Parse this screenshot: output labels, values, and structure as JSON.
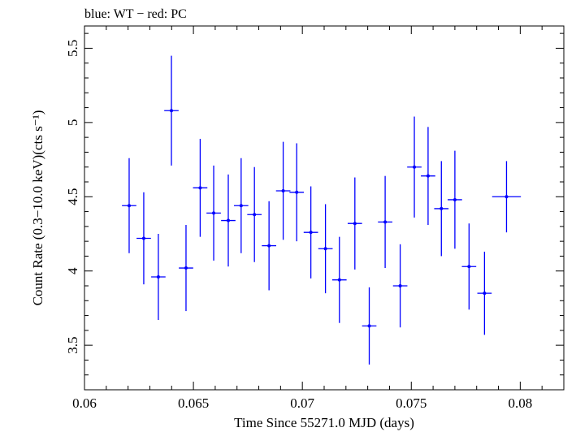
{
  "chart_data": {
    "type": "scatter",
    "title": "blue: WT − red: PC",
    "xlabel": "Time Since 55271.0 MJD (days)",
    "ylabel": "Count Rate (0.3−10.0 keV)(cts s⁻¹)",
    "xlim": [
      0.06,
      0.082
    ],
    "ylim": [
      3.2,
      5.65
    ],
    "x_ticks": [
      0.06,
      0.065,
      0.07,
      0.075,
      0.08
    ],
    "x_tick_labels": [
      "0.06",
      "0.065",
      "0.07",
      "0.075",
      "0.08"
    ],
    "y_ticks": [
      3.5,
      4,
      4.5,
      5,
      5.5
    ],
    "y_tick_labels": [
      "3.5",
      "4",
      "4.5",
      "5",
      "5.5"
    ],
    "series": [
      {
        "color": "#0000ff",
        "points": [
          {
            "x": 0.06205,
            "xerr": 0.00033,
            "y": 4.44,
            "yerr": 0.32
          },
          {
            "x": 0.06272,
            "xerr": 0.00033,
            "y": 4.22,
            "yerr": 0.31
          },
          {
            "x": 0.06339,
            "xerr": 0.00033,
            "y": 3.96,
            "yerr": 0.29
          },
          {
            "x": 0.06466,
            "xerr": 0.00033,
            "y": 4.02,
            "yerr": 0.29
          },
          {
            "x": 0.06399,
            "xerr": 0.00033,
            "y": 5.08,
            "yerr": 0.37
          },
          {
            "x": 0.06531,
            "xerr": 0.00033,
            "y": 4.56,
            "yerr": 0.33
          },
          {
            "x": 0.06593,
            "xerr": 0.00033,
            "y": 4.39,
            "yerr": 0.32
          },
          {
            "x": 0.0666,
            "xerr": 0.00033,
            "y": 4.34,
            "yerr": 0.31
          },
          {
            "x": 0.06719,
            "xerr": 0.00033,
            "y": 4.44,
            "yerr": 0.32
          },
          {
            "x": 0.0678,
            "xerr": 0.00033,
            "y": 4.38,
            "yerr": 0.32
          },
          {
            "x": 0.06847,
            "xerr": 0.00033,
            "y": 4.17,
            "yerr": 0.3
          },
          {
            "x": 0.06912,
            "xerr": 0.00033,
            "y": 4.54,
            "yerr": 0.33
          },
          {
            "x": 0.06974,
            "xerr": 0.00033,
            "y": 4.53,
            "yerr": 0.33
          },
          {
            "x": 0.07039,
            "xerr": 0.00033,
            "y": 4.26,
            "yerr": 0.31
          },
          {
            "x": 0.07106,
            "xerr": 0.00033,
            "y": 4.15,
            "yerr": 0.3
          },
          {
            "x": 0.0717,
            "xerr": 0.00033,
            "y": 3.94,
            "yerr": 0.29
          },
          {
            "x": 0.07241,
            "xerr": 0.00033,
            "y": 4.32,
            "yerr": 0.31
          },
          {
            "x": 0.07307,
            "xerr": 0.00033,
            "y": 3.63,
            "yerr": 0.26
          },
          {
            "x": 0.0738,
            "xerr": 0.00033,
            "y": 4.33,
            "yerr": 0.31
          },
          {
            "x": 0.07449,
            "xerr": 0.00033,
            "y": 3.9,
            "yerr": 0.28
          },
          {
            "x": 0.07514,
            "xerr": 0.00033,
            "y": 4.7,
            "yerr": 0.34
          },
          {
            "x": 0.07577,
            "xerr": 0.00033,
            "y": 4.64,
            "yerr": 0.33
          },
          {
            "x": 0.07638,
            "xerr": 0.00033,
            "y": 4.42,
            "yerr": 0.32
          },
          {
            "x": 0.077,
            "xerr": 0.00033,
            "y": 4.48,
            "yerr": 0.33
          },
          {
            "x": 0.07765,
            "xerr": 0.00033,
            "y": 4.03,
            "yerr": 0.29
          },
          {
            "x": 0.07836,
            "xerr": 0.00033,
            "y": 3.85,
            "yerr": 0.28
          },
          {
            "x": 0.07937,
            "xerr": 0.00066,
            "y": 4.5,
            "yerr": 0.24
          }
        ]
      }
    ],
    "grid": false,
    "legend": "none"
  }
}
